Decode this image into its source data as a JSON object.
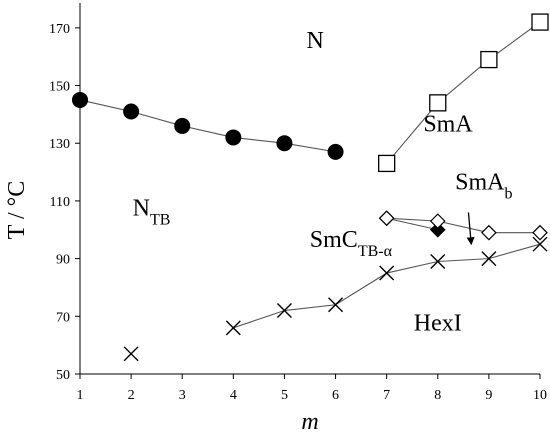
{
  "chart_data": {
    "type": "scatter",
    "xlabel": "m",
    "ylabel": "T / °C",
    "xlim": [
      1,
      10
    ],
    "ylim": [
      50,
      180
    ],
    "x_ticks": [
      "1",
      "2",
      "3",
      "4",
      "5",
      "6",
      "7",
      "8",
      "9",
      "10"
    ],
    "y_ticks": [
      "50",
      "70",
      "90",
      "110",
      "130",
      "150",
      "170"
    ],
    "series": [
      {
        "marker": "filled-circle",
        "connected": true,
        "x": [
          1,
          2,
          3,
          4,
          5,
          6
        ],
        "y": [
          145,
          141,
          136,
          132,
          130,
          127
        ]
      },
      {
        "marker": "open-square",
        "connected": true,
        "x": [
          7,
          8,
          9,
          10
        ],
        "y": [
          123,
          144,
          159,
          172
        ]
      },
      {
        "marker": "filled-diamond",
        "connected": true,
        "x": [
          7,
          8
        ],
        "y": [
          104,
          100
        ]
      },
      {
        "marker": "open-diamond",
        "connected": true,
        "x": [
          7,
          8,
          9,
          10
        ],
        "y": [
          104,
          103,
          99,
          99
        ]
      },
      {
        "marker": "cross",
        "connected": true,
        "x": [
          2
        ],
        "y": [
          57
        ]
      },
      {
        "marker": "cross",
        "connected": true,
        "x": [
          4,
          5,
          6,
          7,
          8,
          9,
          10
        ],
        "y": [
          66,
          72,
          74,
          85,
          89,
          90,
          95
        ]
      }
    ],
    "region_labels": [
      {
        "text": "N",
        "x": 5.6,
        "y": 163
      },
      {
        "text": "SmA",
        "x": 8.2,
        "y": 134
      },
      {
        "text": "N",
        "sub": "TB",
        "x": 2.4,
        "y": 105
      },
      {
        "text": "SmA",
        "sub": "b",
        "x": 8.9,
        "y": 114
      },
      {
        "text": "SmC",
        "sub": "TB-α",
        "x": 6.3,
        "y": 94
      },
      {
        "text": "HexI",
        "x": 8.0,
        "y": 65
      }
    ],
    "arrow": {
      "from": [
        8.6,
        106
      ],
      "to": [
        8.65,
        96
      ]
    },
    "grid": false,
    "legend": "none"
  }
}
